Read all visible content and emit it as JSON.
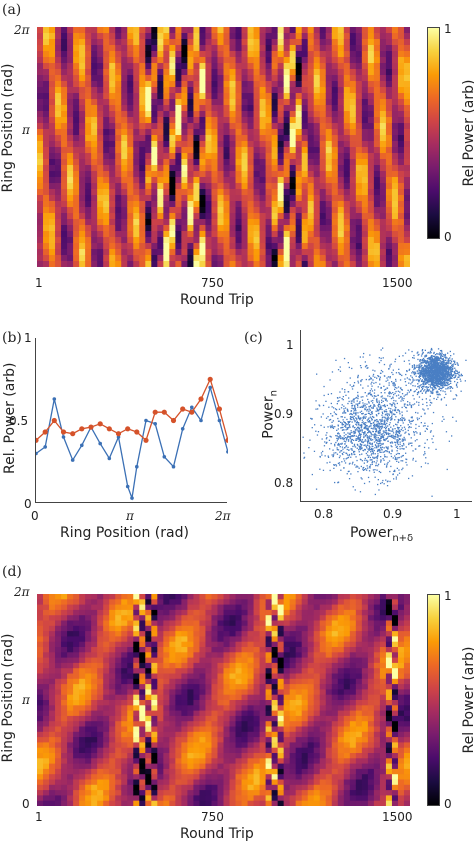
{
  "panels": {
    "a": {
      "label": "(a)"
    },
    "b": {
      "label": "(b)"
    },
    "c": {
      "label": "(c)"
    },
    "d": {
      "label": "(d)"
    }
  },
  "colors": {
    "series_blue": "#3b70b5",
    "series_orange": "#d5522a",
    "scatter_blue": "#4a7fc4",
    "colormap": [
      "#000004",
      "#1b0c41",
      "#4a0c6b",
      "#781c6d",
      "#a52c60",
      "#cf4446",
      "#ed6925",
      "#fb9b06",
      "#f7d13d",
      "#fcffa4"
    ]
  },
  "chart_data": [
    {
      "id": "a",
      "type": "heatmap",
      "xlabel": "Round Trip",
      "ylabel": "Ring Position (rad)",
      "xticks": [
        "1",
        "750",
        "1500"
      ],
      "yticks": [
        "π",
        "2π"
      ],
      "xlim": [
        1,
        1500
      ],
      "ylim": [
        0,
        6.283
      ],
      "colorbar": {
        "label": "Rel Power (arb)",
        "ticks": [
          "0",
          "1"
        ],
        "range": [
          0,
          1
        ],
        "colormap": "inferno"
      }
    },
    {
      "id": "b",
      "type": "line",
      "xlabel": "Ring Position (rad)",
      "ylabel": "Rel. Power (arb)",
      "xticks": [
        "0",
        "π",
        "2π"
      ],
      "yticks": [
        "0",
        "0.5",
        "1"
      ],
      "xlim": [
        0,
        6.283
      ],
      "ylim": [
        0,
        1
      ],
      "series": [
        {
          "color": "blue",
          "x": [
            0,
            0.3,
            0.6,
            0.9,
            1.2,
            1.5,
            1.8,
            2.1,
            2.4,
            2.7,
            3.0,
            3.14,
            3.3,
            3.6,
            3.9,
            4.2,
            4.5,
            4.8,
            5.1,
            5.4,
            5.7,
            6.0,
            6.28
          ],
          "values": [
            0.3,
            0.34,
            0.63,
            0.4,
            0.26,
            0.35,
            0.46,
            0.36,
            0.27,
            0.4,
            0.1,
            0.03,
            0.22,
            0.5,
            0.48,
            0.28,
            0.22,
            0.45,
            0.58,
            0.5,
            0.7,
            0.5,
            0.31
          ]
        },
        {
          "color": "orange",
          "x": [
            0,
            0.3,
            0.6,
            0.9,
            1.2,
            1.5,
            1.8,
            2.1,
            2.4,
            2.7,
            3.0,
            3.3,
            3.6,
            3.9,
            4.2,
            4.5,
            4.8,
            5.1,
            5.4,
            5.7,
            6.0,
            6.28
          ],
          "values": [
            0.38,
            0.43,
            0.5,
            0.43,
            0.42,
            0.45,
            0.46,
            0.48,
            0.45,
            0.42,
            0.45,
            0.43,
            0.38,
            0.55,
            0.55,
            0.5,
            0.57,
            0.55,
            0.63,
            0.75,
            0.57,
            0.38
          ]
        }
      ]
    },
    {
      "id": "c",
      "type": "scatter",
      "xlabel": "Power",
      "xlabel_sub": "n+δ",
      "ylabel": "Power",
      "ylabel_sub": "n",
      "xticks": [
        "0.8",
        "0.9",
        "1"
      ],
      "yticks": [
        "0.8",
        "0.9",
        "1"
      ],
      "xlim": [
        0.77,
        1.02
      ],
      "ylim": [
        0.77,
        1.02
      ],
      "clusters": [
        {
          "center": [
            0.965,
            0.96
          ],
          "spread": [
            0.013,
            0.013
          ],
          "count": 1500
        },
        {
          "center": [
            0.87,
            0.87
          ],
          "spread": [
            0.035,
            0.03
          ],
          "count": 1300
        },
        {
          "center": [
            0.9,
            0.93
          ],
          "spread": [
            0.045,
            0.035
          ],
          "count": 400
        }
      ]
    },
    {
      "id": "d",
      "type": "heatmap",
      "xlabel": "Round Trip",
      "ylabel": "Ring Position (rad)",
      "xticks": [
        "1",
        "750",
        "1500"
      ],
      "yticks": [
        "0",
        "π",
        "2π"
      ],
      "xlim": [
        1,
        1500
      ],
      "ylim": [
        0,
        6.283
      ],
      "colorbar": {
        "label": "Rel Power (arb)",
        "ticks": [
          "0",
          "1"
        ],
        "range": [
          0,
          1
        ],
        "colormap": "inferno"
      }
    }
  ]
}
